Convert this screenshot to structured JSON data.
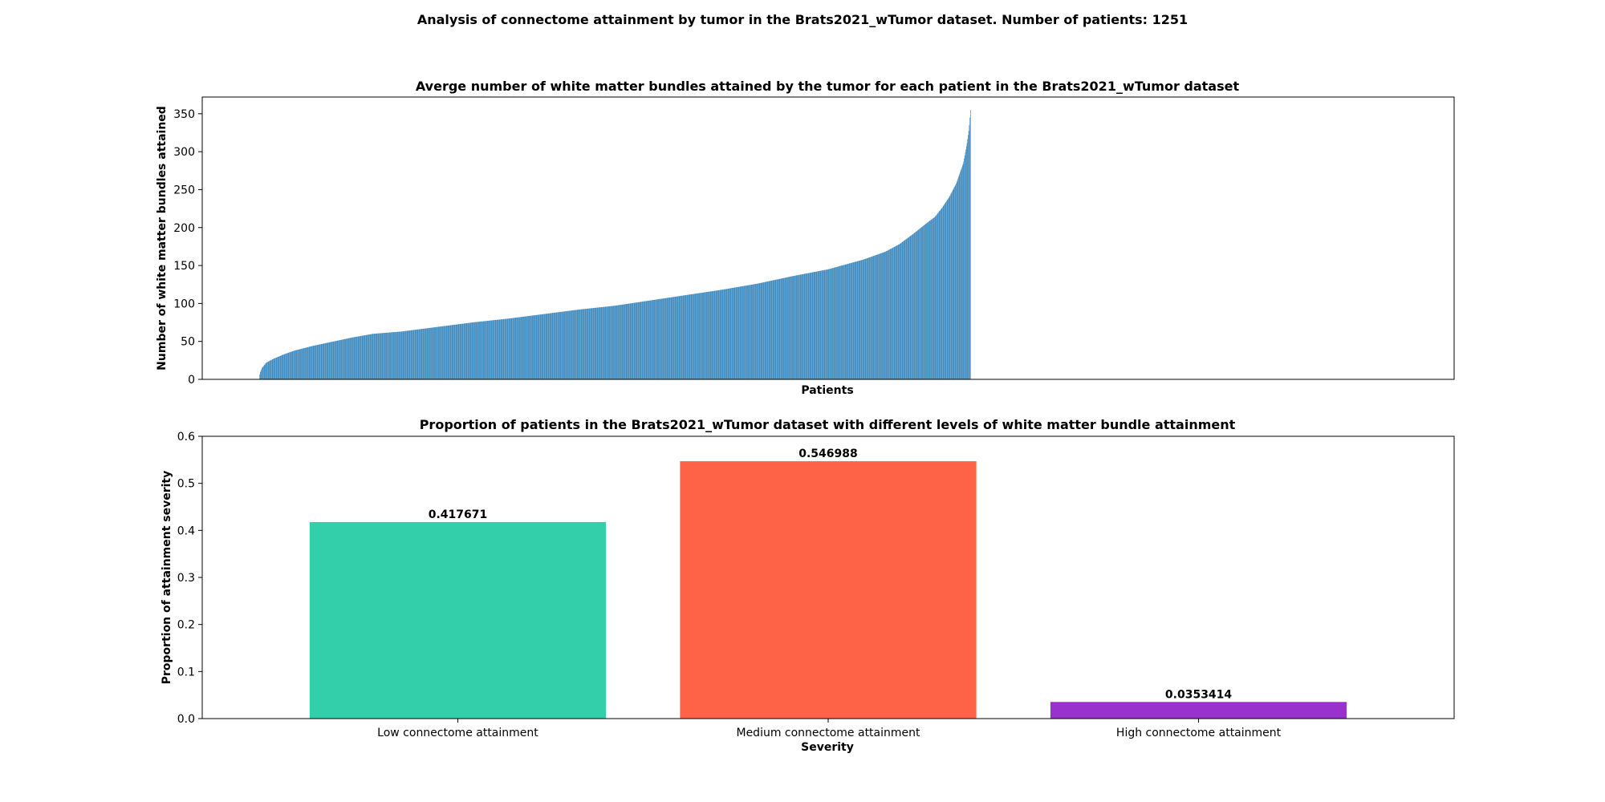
{
  "figure": {
    "suptitle": "Analysis of connectome attainment by tumor in the Brats2021_wTumor dataset. Number of patients: 1251"
  },
  "chart_data": [
    {
      "type": "bar",
      "title": "Averge number of white matter bundles attained by the tumor for each patient in the Brats2021_wTumor dataset",
      "xlabel": "Patients",
      "ylabel": "Number of white matter bundles attained",
      "xlim": [
        -100,
        2100
      ],
      "ylim": [
        0,
        372
      ],
      "yticks": [
        0,
        50,
        100,
        150,
        200,
        250,
        300,
        350
      ],
      "ytick_labels": [
        "0",
        "50",
        "100",
        "150",
        "200",
        "250",
        "300",
        "350"
      ],
      "show_xticks": false,
      "grid": false,
      "color": "#1f77b4",
      "n_bars": 1251,
      "x_values_note": "",
      "sorted_ascending": true,
      "zero_value_count": 1,
      "quantile_profile": [
        [
          0.0,
          0
        ],
        [
          0.001,
          8
        ],
        [
          0.004,
          15
        ],
        [
          0.01,
          22
        ],
        [
          0.02,
          27
        ],
        [
          0.035,
          33
        ],
        [
          0.05,
          38
        ],
        [
          0.075,
          44
        ],
        [
          0.1,
          49
        ],
        [
          0.13,
          55
        ],
        [
          0.16,
          60
        ],
        [
          0.2,
          63
        ],
        [
          0.25,
          69
        ],
        [
          0.3,
          75
        ],
        [
          0.35,
          80
        ],
        [
          0.4,
          86
        ],
        [
          0.45,
          92
        ],
        [
          0.5,
          97
        ],
        [
          0.55,
          104
        ],
        [
          0.6,
          111
        ],
        [
          0.65,
          118
        ],
        [
          0.7,
          126
        ],
        [
          0.75,
          136
        ],
        [
          0.8,
          145
        ],
        [
          0.85,
          158
        ],
        [
          0.88,
          168
        ],
        [
          0.9,
          178
        ],
        [
          0.92,
          192
        ],
        [
          0.94,
          207
        ],
        [
          0.95,
          214
        ],
        [
          0.96,
          226
        ],
        [
          0.97,
          240
        ],
        [
          0.98,
          258
        ],
        [
          0.99,
          285
        ],
        [
          0.995,
          310
        ],
        [
          0.998,
          330
        ],
        [
          1.0,
          355
        ]
      ]
    },
    {
      "type": "bar",
      "title": "Proportion of patients in the Brats2021_wTumor dataset with different levels of white matter bundle attainment",
      "xlabel": "Severity",
      "ylabel": "Proportion of attainment severity",
      "categories": [
        "Low connectome attainment",
        "Medium connectome attainment",
        "High connectome attainment"
      ],
      "values": [
        0.417671,
        0.546988,
        0.0353414
      ],
      "value_labels": [
        "0.417671",
        "0.546988",
        "0.0353414"
      ],
      "colors": [
        "#33cfab",
        "#ff6347",
        "#9932cc"
      ],
      "ylim": [
        0,
        0.6
      ],
      "yticks": [
        0,
        0.1,
        0.2,
        0.3,
        0.4,
        0.5,
        0.6
      ],
      "ytick_labels": [
        "0.0",
        "0.1",
        "0.2",
        "0.3",
        "0.4",
        "0.5",
        "0.6"
      ],
      "grid": false
    }
  ]
}
